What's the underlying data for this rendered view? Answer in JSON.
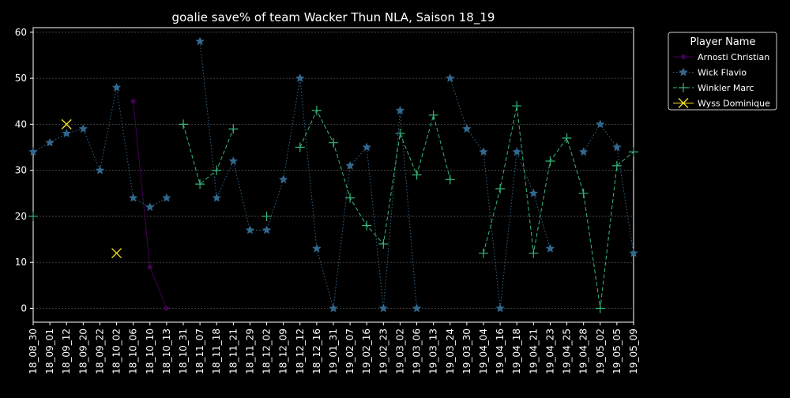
{
  "chart_data": {
    "type": "line",
    "title": "goalie save% of team Wacker Thun NLA, Saison 18_19",
    "xlabel": "",
    "ylabel": "",
    "ylim": [
      -3,
      61
    ],
    "yticks": [
      0,
      10,
      20,
      30,
      40,
      50,
      60
    ],
    "grid": true,
    "legend": {
      "title": "Player Name",
      "placement": "outside-right-top"
    },
    "categories": [
      "18_08_30",
      "18_09_01",
      "18_09_12",
      "18_09_20",
      "18_09_22",
      "18_10_02",
      "18_10_06",
      "18_10_10",
      "18_10_13",
      "18_10_31",
      "18_11_07",
      "18_11_18",
      "18_11_21",
      "18_11_29",
      "18_12_02",
      "18_12_09",
      "18_12_12",
      "18_12_16",
      "19_01_31",
      "19_02_07",
      "19_02_16",
      "19_02_23",
      "19_03_02",
      "19_03_06",
      "19_03_13",
      "19_03_24",
      "19_03_30",
      "19_04_04",
      "19_04_16",
      "19_04_18",
      "19_04_21",
      "19_04_23",
      "19_04_25",
      "19_04_28",
      "19_05_02",
      "19_05_05",
      "19_05_09"
    ],
    "series": [
      {
        "name": "Arnosti Christian",
        "color": "#440154",
        "marker": "circle",
        "linestyle": "solid",
        "values": [
          null,
          null,
          null,
          null,
          null,
          null,
          45,
          9,
          0,
          null,
          null,
          null,
          null,
          null,
          null,
          null,
          null,
          null,
          null,
          null,
          null,
          null,
          null,
          null,
          null,
          null,
          null,
          null,
          null,
          null,
          null,
          null,
          null,
          null,
          null,
          null,
          null
        ]
      },
      {
        "name": "Wick Flavio",
        "color": "#31688e",
        "marker": "star",
        "linestyle": "dotted",
        "values": [
          34,
          36,
          38,
          39,
          30,
          48,
          24,
          22,
          24,
          null,
          58,
          24,
          32,
          17,
          17,
          28,
          50,
          13,
          0,
          31,
          35,
          0,
          43,
          0,
          null,
          50,
          39,
          34,
          0,
          34,
          25,
          13,
          null,
          34,
          40,
          35,
          12
        ]
      },
      {
        "name": "Winkler Marc",
        "color": "#35b779",
        "marker": "plus",
        "linestyle": "dashed",
        "values": [
          20,
          null,
          null,
          null,
          null,
          null,
          null,
          null,
          null,
          40,
          27,
          30,
          39,
          null,
          20,
          null,
          35,
          43,
          36,
          24,
          18,
          14,
          38,
          29,
          42,
          28,
          null,
          12,
          26,
          44,
          12,
          32,
          37,
          25,
          0,
          31,
          34
        ]
      },
      {
        "name": "Wyss Dominique",
        "color": "#fde725",
        "marker": "x",
        "linestyle": "solid",
        "values": [
          null,
          null,
          40,
          null,
          null,
          12,
          null,
          null,
          null,
          null,
          null,
          null,
          null,
          null,
          null,
          null,
          null,
          null,
          null,
          null,
          null,
          null,
          null,
          null,
          null,
          null,
          null,
          null,
          null,
          null,
          null,
          null,
          null,
          null,
          null,
          null,
          null
        ]
      }
    ]
  }
}
